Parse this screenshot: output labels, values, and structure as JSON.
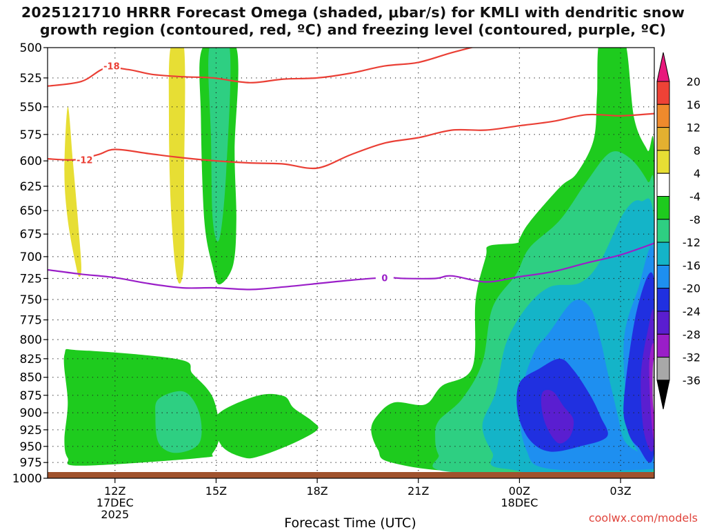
{
  "title": {
    "line1": "2025121710 HRRR Forecast Omega (shaded, μbar/s) for KMLI with dendritic snow",
    "line2": "growth region (contoured, red, ºC) and freezing level (contoured, purple, ºC)"
  },
  "credit": "coolwx.com/models",
  "chart_data": {
    "type": "time-height cross section",
    "xlabel": "Forecast Time (UTC)",
    "x_ticks": [
      {
        "hour": 12,
        "label": "12Z",
        "sub1": "17DEC",
        "sub2": "2025"
      },
      {
        "hour": 15,
        "label": "15Z",
        "sub1": "",
        "sub2": ""
      },
      {
        "hour": 18,
        "label": "18Z",
        "sub1": "",
        "sub2": ""
      },
      {
        "hour": 21,
        "label": "21Z",
        "sub1": "",
        "sub2": ""
      },
      {
        "hour": 24,
        "label": "00Z",
        "sub1": "18DEC",
        "sub2": ""
      },
      {
        "hour": 27,
        "label": "03Z",
        "sub1": "",
        "sub2": ""
      }
    ],
    "xlim": [
      10,
      28
    ],
    "y_ticks": [
      500,
      525,
      550,
      575,
      600,
      625,
      650,
      675,
      700,
      725,
      750,
      775,
      800,
      825,
      850,
      875,
      900,
      925,
      950,
      975,
      1000
    ],
    "ylim": [
      500,
      1000
    ],
    "y_scale": "log (pressure, hPa)",
    "grid": "dotted",
    "colorbar": {
      "labels": [
        "20",
        "16",
        "12",
        "8",
        "4",
        "-4",
        "-8",
        "-12",
        "-16",
        "-20",
        "-24",
        "-28",
        "-32",
        "-36"
      ],
      "colors": [
        "#e8197c",
        "#ee4236",
        "#ef8a2c",
        "#e3b030",
        "#e7de34",
        "#ffffff",
        "#1ecb1e",
        "#2ecf82",
        "#14b4c8",
        "#1e8ff0",
        "#2030e0",
        "#5a1ed0",
        "#9a1ec8",
        "#a8a8a8",
        "#000000"
      ]
    },
    "omega_levels": {
      "-4": "#1ecb1e",
      "-8": "#2ecf82",
      "-12": "#14b4c8",
      "-16": "#1e8ff0",
      "-20": "#2030e0",
      "-24": "#5a1ed0",
      "-28": "#9a1ec8",
      "-32": "#a8a8a8",
      "4": "#e7de34"
    },
    "omega_regions": [
      {
        "level": "4",
        "pts": [
          [
            10.6,
            550
          ],
          [
            10.75,
            600
          ],
          [
            10.9,
            660
          ],
          [
            11,
            710
          ],
          [
            10.95,
            723
          ],
          [
            10.85,
            712
          ],
          [
            10.6,
            660
          ],
          [
            10.5,
            610
          ]
        ]
      },
      {
        "level": "4",
        "pts": [
          [
            13.65,
            500
          ],
          [
            14.05,
            500
          ],
          [
            14.05,
            620
          ],
          [
            14.05,
            700
          ],
          [
            13.95,
            730
          ],
          [
            13.8,
            715
          ],
          [
            13.65,
            640
          ],
          [
            13.6,
            560
          ]
        ]
      },
      {
        "level": "-4",
        "pts": [
          [
            14.6,
            500
          ],
          [
            15.6,
            500
          ],
          [
            15.55,
            590
          ],
          [
            15.6,
            660
          ],
          [
            15.5,
            710
          ],
          [
            15.1,
            732
          ],
          [
            14.9,
            712
          ],
          [
            14.65,
            660
          ],
          [
            14.55,
            560
          ]
        ]
      },
      {
        "level": "-8",
        "pts": [
          [
            14.8,
            500
          ],
          [
            15.4,
            500
          ],
          [
            15.3,
            610
          ],
          [
            15.1,
            680
          ],
          [
            14.9,
            660
          ],
          [
            14.85,
            580
          ]
        ]
      },
      {
        "level": "-4",
        "pts": [
          [
            10.5,
            820
          ],
          [
            11,
            814
          ],
          [
            13.9,
            826
          ],
          [
            14.3,
            845
          ],
          [
            14.9,
            878
          ],
          [
            15.1,
            930
          ],
          [
            14.9,
            960
          ],
          [
            14.5,
            968
          ],
          [
            11,
            980
          ],
          [
            10.6,
            968
          ],
          [
            10.5,
            940
          ],
          [
            10.6,
            885
          ]
        ]
      },
      {
        "level": "-8",
        "pts": [
          [
            13.3,
            880
          ],
          [
            14.05,
            870
          ],
          [
            14.5,
            900
          ],
          [
            14.5,
            945
          ],
          [
            13.8,
            960
          ],
          [
            13.3,
            945
          ],
          [
            13.2,
            905
          ]
        ]
      },
      {
        "level": "-4",
        "pts": [
          [
            15,
            905
          ],
          [
            16.2,
            876
          ],
          [
            17,
            876
          ],
          [
            17.3,
            893
          ],
          [
            17.85,
            912
          ],
          [
            18,
            925
          ],
          [
            17.3,
            945
          ],
          [
            16.3,
            965
          ],
          [
            15.8,
            967
          ],
          [
            15.15,
            948
          ]
        ]
      },
      {
        "level": "-4",
        "pts": [
          [
            20.3,
            885
          ],
          [
            21.2,
            888
          ],
          [
            21.7,
            862
          ],
          [
            22.6,
            837
          ],
          [
            22.7,
            750
          ],
          [
            23,
            700
          ],
          [
            23.1,
            688
          ],
          [
            23.9,
            685
          ],
          [
            24,
            680
          ],
          [
            24.3,
            662
          ],
          [
            25.2,
            626
          ],
          [
            25.7,
            612
          ],
          [
            26.2,
            580
          ],
          [
            26.3,
            540
          ],
          [
            26.4,
            492
          ],
          [
            27.1,
            492
          ],
          [
            27.4,
            560
          ],
          [
            27.8,
            590
          ],
          [
            28,
            600
          ],
          [
            28,
            990
          ],
          [
            22.5,
            990
          ],
          [
            20.2,
            975
          ],
          [
            19.8,
            955
          ],
          [
            19.6,
            925
          ],
          [
            19.8,
            903
          ]
        ]
      },
      {
        "level": "-8",
        "pts": [
          [
            21.6,
            912
          ],
          [
            22.3,
            880
          ],
          [
            22.9,
            830
          ],
          [
            23.2,
            760
          ],
          [
            23.9,
            720
          ],
          [
            24.3,
            690
          ],
          [
            25.2,
            660
          ],
          [
            26,
            620
          ],
          [
            26.7,
            592
          ],
          [
            27.3,
            598
          ],
          [
            27.8,
            620
          ],
          [
            28,
            640
          ],
          [
            28,
            990
          ],
          [
            22,
            990
          ],
          [
            21.6,
            963
          ],
          [
            21.5,
            938
          ]
        ]
      },
      {
        "level": "-12",
        "pts": [
          [
            22.9,
            918
          ],
          [
            23.3,
            870
          ],
          [
            23.6,
            805
          ],
          [
            24.2,
            760
          ],
          [
            24.9,
            735
          ],
          [
            25.8,
            730
          ],
          [
            26.4,
            705
          ],
          [
            27.1,
            652
          ],
          [
            27.6,
            640
          ],
          [
            28,
            668
          ],
          [
            28,
            985
          ],
          [
            23.6,
            985
          ],
          [
            23.2,
            960
          ]
        ]
      },
      {
        "level": "-16",
        "pts": [
          [
            24,
            885
          ],
          [
            24.4,
            820
          ],
          [
            24.9,
            790
          ],
          [
            25.6,
            752
          ],
          [
            26.1,
            760
          ],
          [
            26.4,
            800
          ],
          [
            26.6,
            840
          ],
          [
            26.9,
            900
          ],
          [
            27.1,
            940
          ],
          [
            27.5,
            958
          ],
          [
            28,
            968
          ],
          [
            28,
            985
          ],
          [
            24.9,
            985
          ],
          [
            24.2,
            955
          ]
        ]
      },
      {
        "level": "-16",
        "pts": [
          [
            27.1,
            800
          ],
          [
            27.5,
            740
          ],
          [
            28,
            696
          ],
          [
            28,
            960
          ],
          [
            27.4,
            948
          ],
          [
            27.2,
            900
          ]
        ]
      },
      {
        "level": "-20",
        "pts": [
          [
            24,
            858
          ],
          [
            24.6,
            838
          ],
          [
            25.2,
            825
          ],
          [
            25.6,
            840
          ],
          [
            26.1,
            875
          ],
          [
            26.4,
            905
          ],
          [
            26.6,
            935
          ],
          [
            25.8,
            950
          ],
          [
            24.9,
            958
          ],
          [
            24.3,
            940
          ],
          [
            23.95,
            900
          ]
        ]
      },
      {
        "level": "-20",
        "pts": [
          [
            27.1,
            880
          ],
          [
            27.5,
            760
          ],
          [
            28,
            728
          ],
          [
            28,
            957
          ],
          [
            27.5,
            950
          ],
          [
            27.2,
            925
          ]
        ]
      },
      {
        "level": "-24",
        "pts": [
          [
            24.7,
            870
          ],
          [
            25,
            870
          ],
          [
            25.3,
            890
          ],
          [
            25.6,
            910
          ],
          [
            25.5,
            935
          ],
          [
            25.15,
            945
          ],
          [
            24.8,
            920
          ],
          [
            24.65,
            890
          ]
        ]
      },
      {
        "level": "-24",
        "pts": [
          [
            27.6,
            850
          ],
          [
            27.8,
            790
          ],
          [
            28,
            770
          ],
          [
            28,
            945
          ],
          [
            27.7,
            930
          ]
        ]
      },
      {
        "level": "-28",
        "pts": [
          [
            27.85,
            830
          ],
          [
            28,
            810
          ],
          [
            28,
            935
          ],
          [
            27.9,
            900
          ]
        ]
      },
      {
        "level": "-32",
        "pts": [
          [
            27.95,
            840
          ],
          [
            28,
            830
          ],
          [
            28,
            895
          ],
          [
            27.95,
            880
          ]
        ]
      },
      {
        "level": "-8",
        "pts": [
          [
            22.3,
            935
          ],
          [
            22.55,
            927
          ],
          [
            22.6,
            945
          ],
          [
            22.45,
            957
          ],
          [
            22.25,
            948
          ]
        ]
      }
    ],
    "contours": [
      {
        "name": "-18",
        "color": "#ea3f35",
        "label": "-18",
        "label_at": [
          11.9,
          515
        ],
        "pts": [
          [
            10,
            532
          ],
          [
            11,
            528
          ],
          [
            11.7,
            517
          ],
          [
            12.4,
            518
          ],
          [
            13.1,
            522
          ],
          [
            14,
            524
          ],
          [
            14.9,
            525
          ],
          [
            16,
            529
          ],
          [
            17,
            526
          ],
          [
            18,
            525
          ],
          [
            19,
            521
          ],
          [
            20,
            515
          ],
          [
            21,
            512
          ],
          [
            22,
            504
          ],
          [
            23,
            497
          ],
          [
            24,
            490
          ],
          [
            25,
            485
          ],
          [
            26,
            480
          ],
          [
            27,
            477
          ],
          [
            28,
            475
          ]
        ]
      },
      {
        "name": "-12",
        "color": "#ea3f35",
        "label": "-12",
        "label_at": [
          11.1,
          599
        ],
        "pts": [
          [
            10,
            598
          ],
          [
            10.8,
            599
          ],
          [
            11.5,
            594
          ],
          [
            12,
            589
          ],
          [
            13,
            593
          ],
          [
            14,
            597
          ],
          [
            15,
            600
          ],
          [
            16,
            602
          ],
          [
            17,
            603
          ],
          [
            18,
            607
          ],
          [
            19,
            594
          ],
          [
            20,
            583
          ],
          [
            21,
            578
          ],
          [
            22,
            571
          ],
          [
            23,
            571
          ],
          [
            24,
            567
          ],
          [
            25,
            563
          ],
          [
            26,
            557
          ],
          [
            27,
            558
          ],
          [
            28,
            556
          ]
        ]
      },
      {
        "name": "0",
        "color": "#9a1ec8",
        "label": "0",
        "label_at": [
          20.0,
          724
        ],
        "pts": [
          [
            10,
            715
          ],
          [
            11,
            720
          ],
          [
            12,
            724
          ],
          [
            13,
            731
          ],
          [
            14,
            736
          ],
          [
            15,
            736
          ],
          [
            16,
            738
          ],
          [
            17,
            735
          ],
          [
            18,
            731
          ],
          [
            19,
            727
          ],
          [
            20,
            724
          ],
          [
            20.6,
            725
          ],
          [
            21.5,
            725
          ],
          [
            22,
            722
          ],
          [
            23,
            729
          ],
          [
            24,
            723
          ],
          [
            25,
            717
          ],
          [
            26,
            707
          ],
          [
            27,
            698
          ],
          [
            28,
            685
          ]
        ]
      }
    ]
  }
}
